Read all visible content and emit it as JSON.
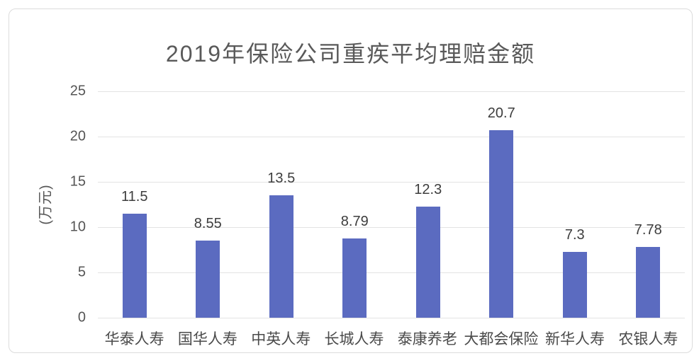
{
  "card": {
    "background": "#ffffff",
    "border_color": "#dcdcdc"
  },
  "chart_data": {
    "type": "bar",
    "title": "2019年保险公司重疾平均理赔金额",
    "xlabel": "",
    "ylabel": "(万元)",
    "categories": [
      "华泰人寿",
      "国华人寿",
      "中英人寿",
      "长城人寿",
      "泰康养老",
      "大都会保险",
      "新华人寿",
      "农银人寿"
    ],
    "values": [
      11.5,
      8.55,
      13.5,
      8.79,
      12.3,
      20.7,
      7.3,
      7.78
    ],
    "value_labels": [
      "11.5",
      "8.55",
      "13.5",
      "8.79",
      "12.3",
      "20.7",
      "7.3",
      "7.78"
    ],
    "yticks": [
      0,
      5,
      10,
      15,
      20,
      25
    ],
    "ylim": [
      0,
      25
    ],
    "grid": true,
    "legend_position": "none",
    "bar_color": "#5b6bc0",
    "gridline_color": "#e3e3e3",
    "title_color": "#595959",
    "label_color": "#3d3d3d"
  }
}
